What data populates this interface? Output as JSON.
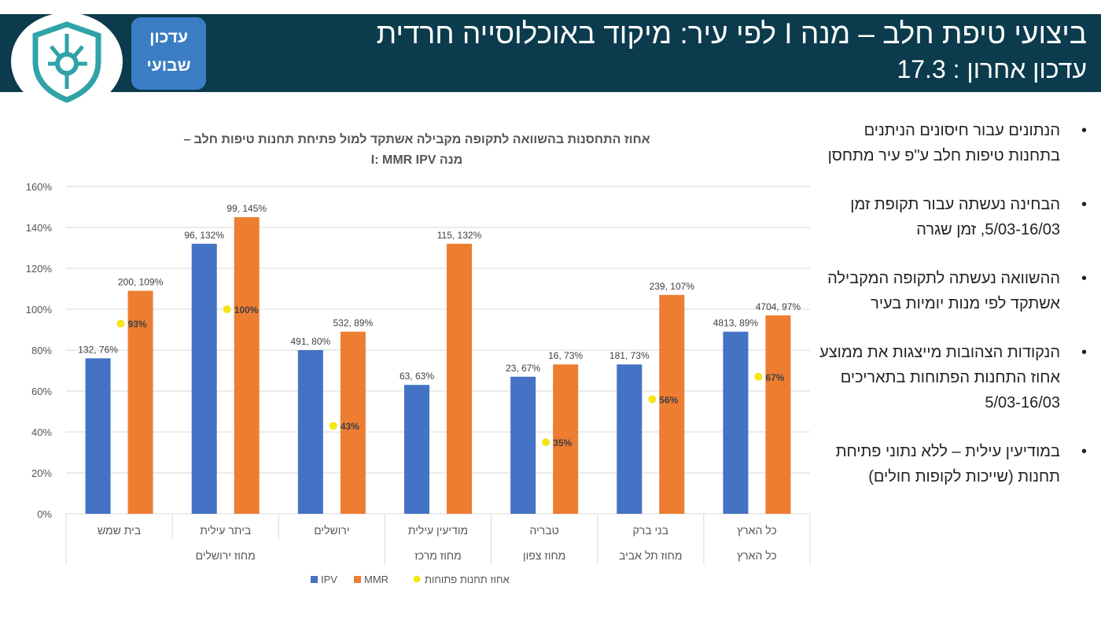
{
  "header": {
    "title": "ביצועי טיפת חלב – מנה I לפי עיר: מיקוד באוכלוסייה חרדית",
    "subtitle": "עדכון אחרון : 17.3",
    "badge_line1": "עדכון",
    "badge_line2": "שבועי",
    "logo_icon": "shield-circuit-icon"
  },
  "bullets": [
    "הנתונים עבור חיסונים הניתנים בתחנות טיפות חלב ע\"פ עיר מתחסן",
    "הבחינה נעשתה עבור תקופת זמן 5/03-16/03, זמן שגרה",
    "ההשוואה נעשתה לתקופה המקבילה אשתקד לפי מנות יומיות בעיר",
    "הנקודות הצהובות מייצגות את ממוצע אחוז התחנות הפתוחות בתאריכים  5/03-16/03",
    "במודיעין עילית – ללא נתוני פתיחת תחנות (שייכות לקופות חולים)"
  ],
  "chart_data": {
    "type": "bar",
    "title_line1": "אחוז התחסנות בהשוואה לתקופה מקבילה אשתקד למול פתיחת תחנות טיפות חלב   –",
    "title_line2": "מנה I: MMR IPV",
    "categories": [
      "בית שמש",
      "ביתר עילית",
      "ירושלים",
      "מודיעין עילית",
      "טבריה",
      "בני ברק",
      "כל הארץ"
    ],
    "groups": [
      {
        "label": "מחוז ירושלים",
        "span": [
          0,
          2
        ]
      },
      {
        "label": "מחוז מרכז",
        "span": [
          3,
          3
        ]
      },
      {
        "label": "מחוז צפון",
        "span": [
          4,
          4
        ]
      },
      {
        "label": "מחוז תל אביב",
        "span": [
          5,
          5
        ]
      },
      {
        "label": "כל הארץ",
        "span": [
          6,
          6
        ]
      }
    ],
    "ylim": [
      0,
      160
    ],
    "yticks": [
      "0%",
      "20%",
      "40%",
      "60%",
      "80%",
      "100%",
      "120%",
      "140%",
      "160%"
    ],
    "grid": true,
    "legend_position": "bottom",
    "series": [
      {
        "name": "IPV",
        "color": "#4472c4",
        "values": [
          76,
          132,
          80,
          63,
          67,
          73,
          89
        ],
        "labels": [
          "132, 76%",
          "96, 132%",
          "491, 80%",
          "63, 63%",
          "23, 67%",
          "181, 73%",
          "4813, 89%"
        ]
      },
      {
        "name": "MMR",
        "color": "#ed7d31",
        "values": [
          109,
          145,
          89,
          132,
          73,
          107,
          97
        ],
        "labels": [
          "200, 109%",
          "99, 145%",
          "532, 89%",
          "115, 132%",
          "16, 73%",
          "239, 107%",
          "4704, 97%"
        ]
      },
      {
        "name": "אחוז תחנות פתוחות",
        "color": "#f5e614",
        "values": [
          93,
          100,
          43,
          null,
          35,
          56,
          67
        ],
        "labels": [
          "93%",
          "100%",
          "43%",
          "",
          "35%",
          "56%",
          "67%"
        ]
      }
    ]
  }
}
